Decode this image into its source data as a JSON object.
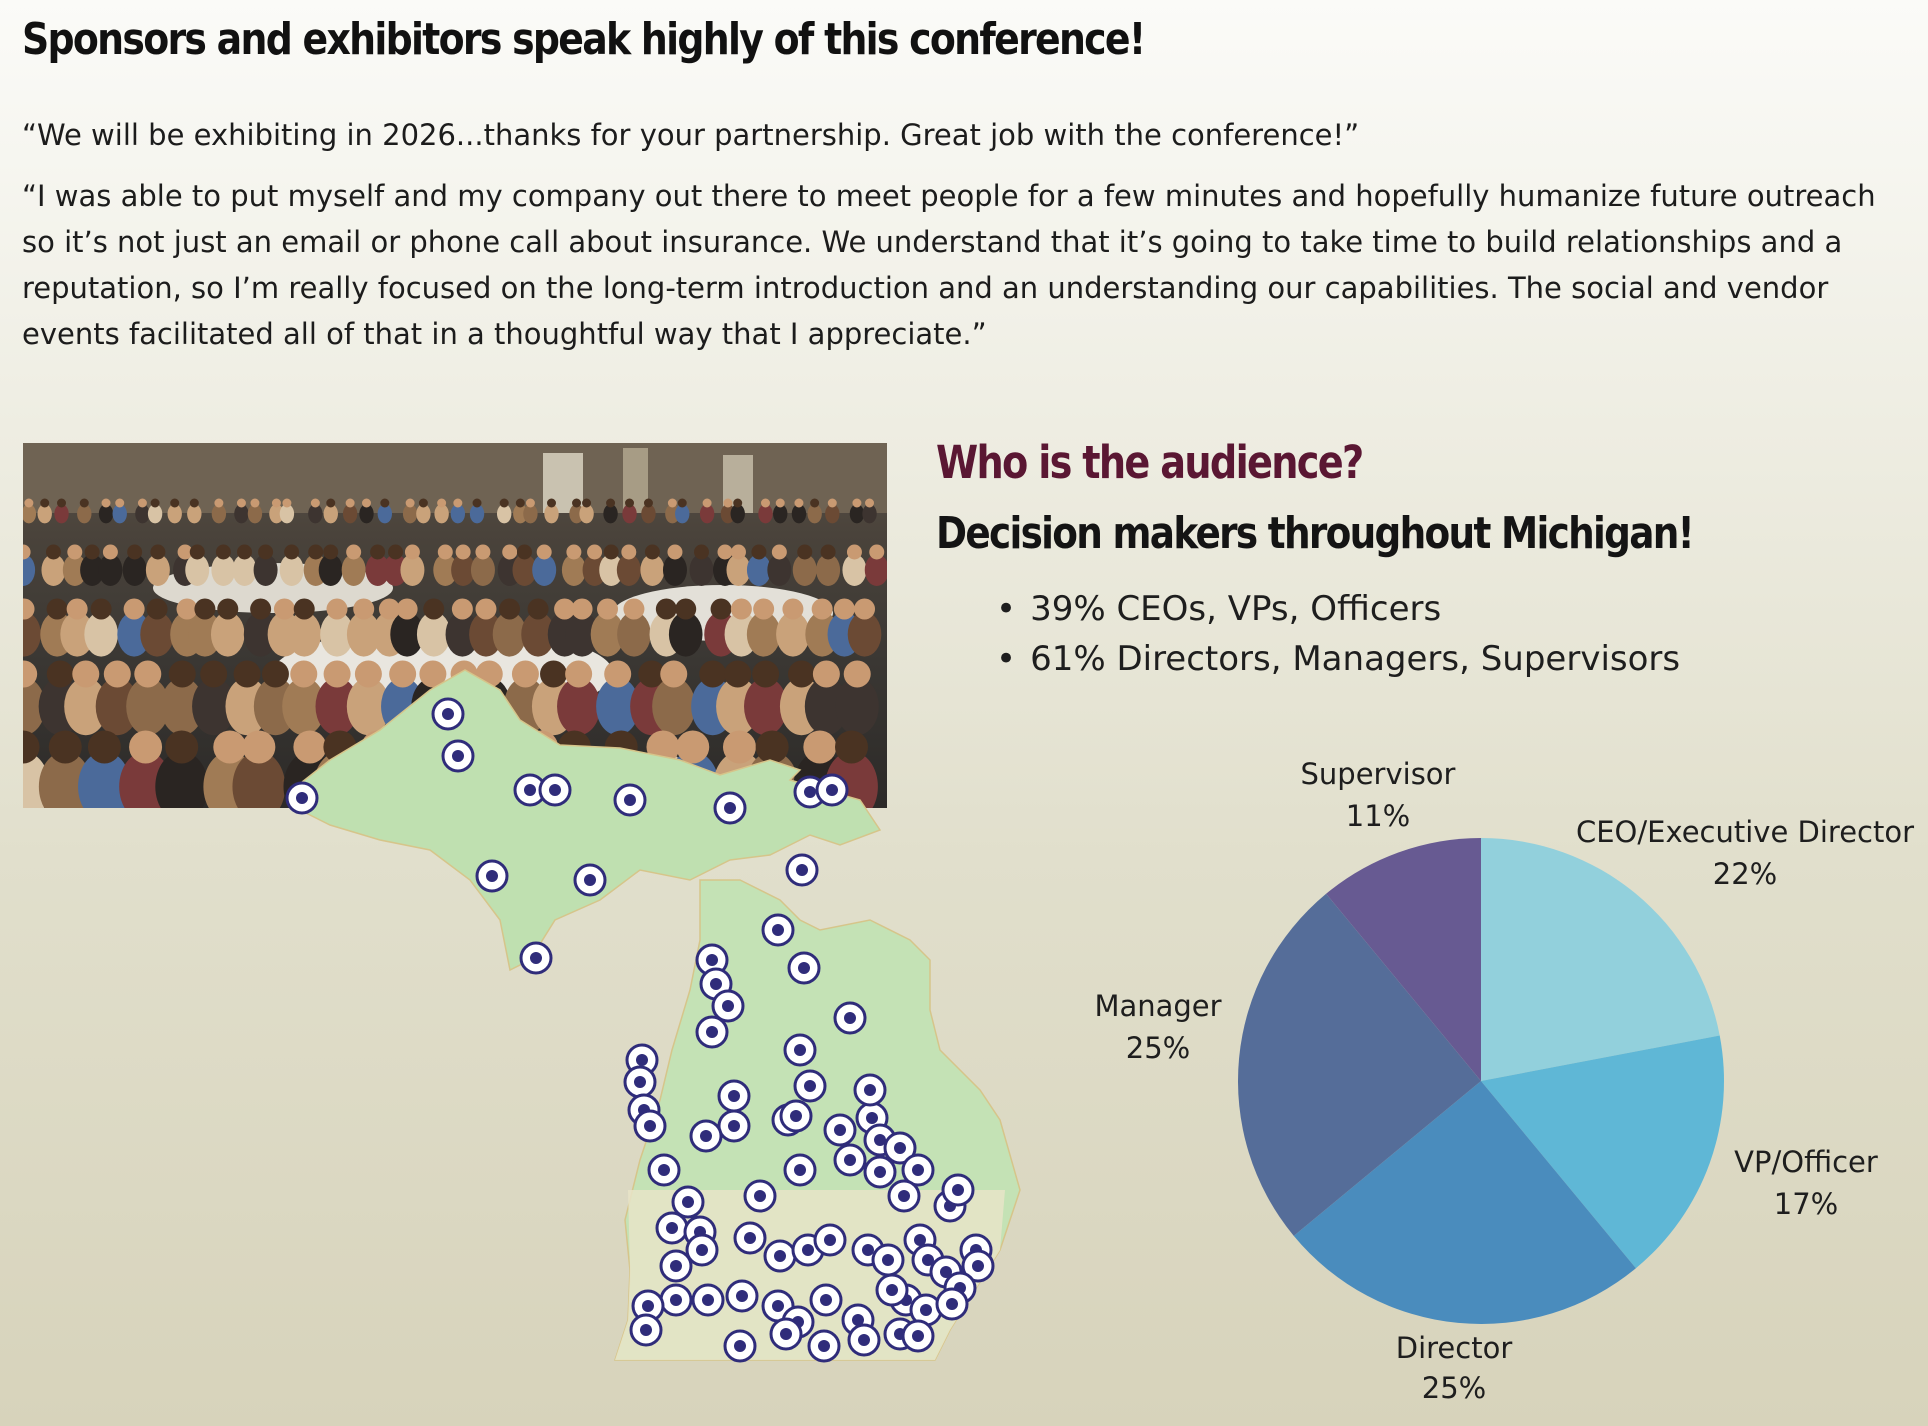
{
  "heading": "Sponsors and exhibitors speak highly of this conference!",
  "quotes": [
    "“We will be exhibiting in 2026...thanks for your partnership. Great job with the conference!”",
    "“I was able to put myself and my company out there to meet people for a few minutes and hopefully humanize future outreach so it’s not just an email or phone call about insurance. We understand that it’s going to take time to build relationships and a reputation, so I’m really focused on the long-term introduction and an understanding our capabilities. The social and vendor events facilitated all of that in a thoughtful way that I appreciate.”"
  ],
  "audience": {
    "title": "Who is the audience?",
    "subtitle": "Decision makers throughout Michigan!",
    "bullets": [
      "39% CEOs, VPs, Officers",
      "61% Directors, Managers, Supervisors"
    ]
  },
  "colors": {
    "title_accent": "#5a1733",
    "map_land": "#bfe0b0",
    "map_land_south": "#e8e4c8",
    "marker_ring": "#2f2c7a"
  },
  "chart_data": {
    "type": "pie",
    "title": "",
    "start": "top",
    "direction": "clockwise",
    "slices": [
      {
        "label": "CEO/Executive Director",
        "value": 22,
        "display": "22%",
        "color": "#92d0dc"
      },
      {
        "label": "VP/Officer",
        "value": 17,
        "display": "17%",
        "color": "#5fb7d6"
      },
      {
        "label": "Director",
        "value": 25,
        "display": "25%",
        "color": "#4a8cbd"
      },
      {
        "label": "Manager",
        "value": 25,
        "display": "25%",
        "color": "#556d99"
      },
      {
        "label": "Supervisor",
        "value": 11,
        "display": "11%",
        "color": "#675a92"
      }
    ]
  }
}
